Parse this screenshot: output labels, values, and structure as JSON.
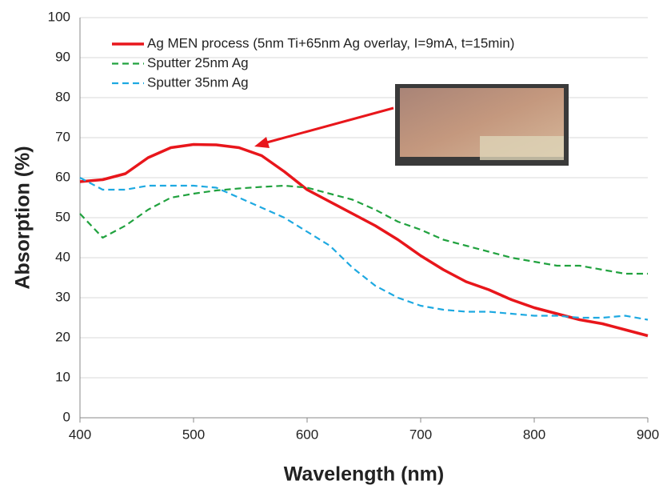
{
  "chart_data": {
    "type": "line",
    "x_label": "Wavelength (nm)",
    "y_label": "Absorption (%)",
    "x": [
      400,
      420,
      440,
      460,
      480,
      500,
      520,
      540,
      560,
      580,
      600,
      620,
      640,
      660,
      680,
      700,
      720,
      740,
      760,
      780,
      800,
      820,
      840,
      860,
      880,
      900
    ],
    "series": [
      {
        "name": "Ag MEN process (5nm Ti+65nm Ag overlay, I=9mA, t=15min)",
        "color": "#e8161b",
        "style": "solid",
        "values": [
          59,
          59.5,
          61,
          65,
          67.5,
          68.3,
          68.2,
          67.5,
          65.5,
          61.5,
          57,
          54,
          51,
          48,
          44.5,
          40.5,
          37,
          34,
          32,
          29.5,
          27.5,
          26,
          24.5,
          23.5,
          22,
          20.5
        ]
      },
      {
        "name": "Sputter 25nm Ag",
        "color": "#21a23f",
        "style": "dashed",
        "values": [
          51,
          45,
          48,
          52,
          55,
          56,
          56.8,
          57.3,
          57.7,
          58,
          57.5,
          56,
          54.5,
          52,
          49,
          47,
          44.5,
          43,
          41.5,
          40,
          39,
          38,
          38,
          37,
          36,
          36
        ]
      },
      {
        "name": "Sputter 35nm Ag",
        "color": "#1ea9e1",
        "style": "dashed",
        "values": [
          60,
          57,
          57,
          58,
          58,
          58,
          57.5,
          55,
          52.5,
          50,
          46.5,
          43,
          37.5,
          33,
          30,
          28,
          27,
          26.5,
          26.5,
          26,
          25.5,
          25.5,
          25,
          25,
          25.5,
          24.5
        ]
      }
    ],
    "xlim": [
      400,
      900
    ],
    "xticks": [
      400,
      500,
      600,
      700,
      800,
      900
    ],
    "ylim": [
      0,
      100
    ],
    "yticks": [
      0,
      10,
      20,
      30,
      40,
      50,
      60,
      70,
      80,
      90,
      100
    ],
    "grid": true,
    "legend": "top-left"
  }
}
